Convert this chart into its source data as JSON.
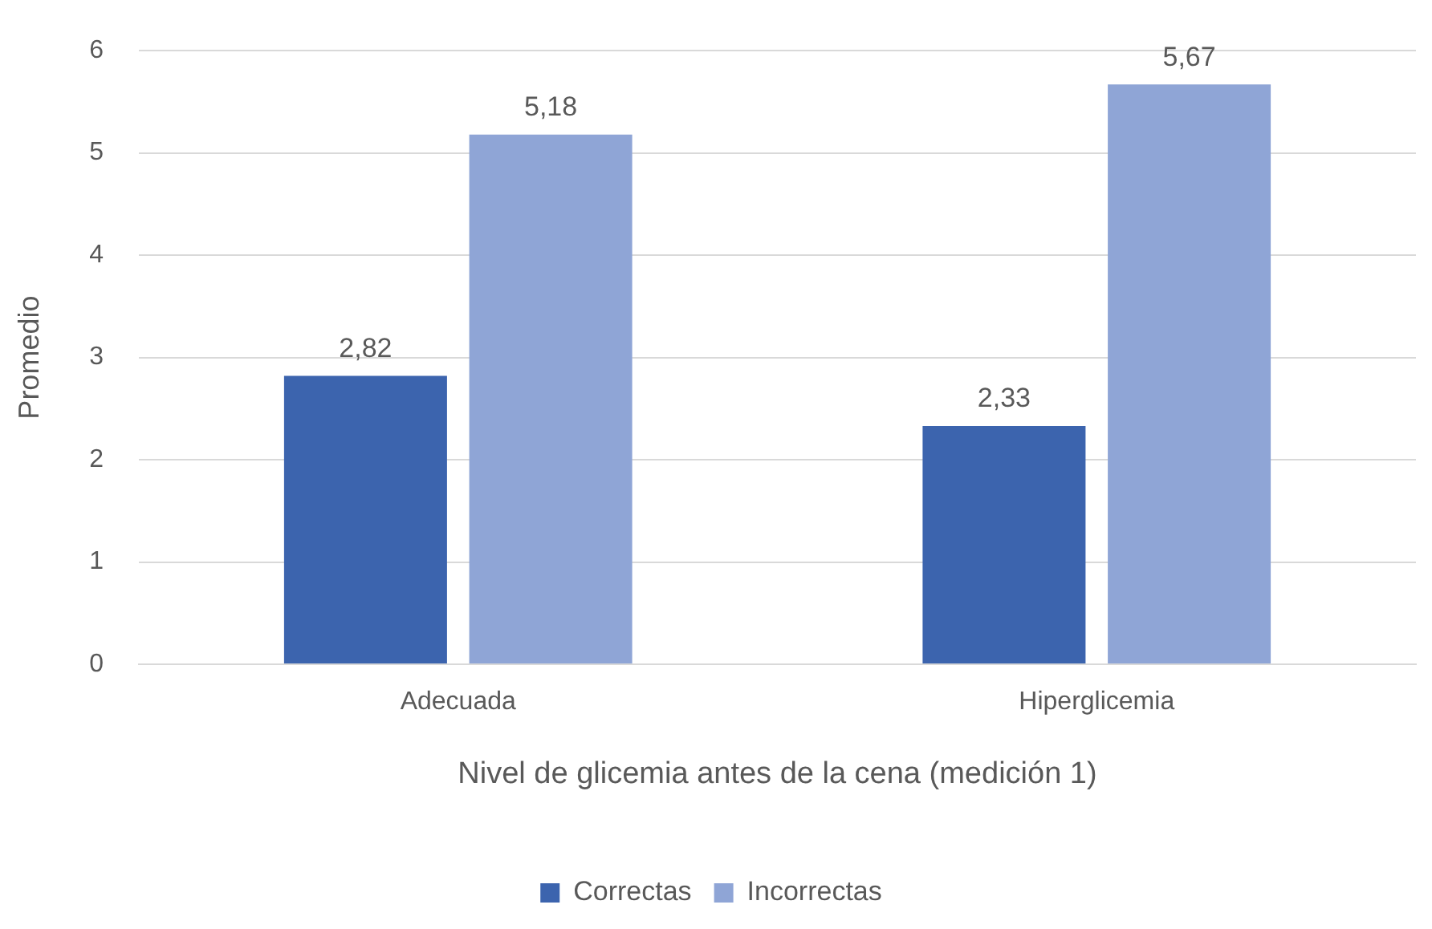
{
  "chart_data": {
    "type": "bar",
    "xlabel": "Nivel de glicemia antes de la cena (medición 1)",
    "ylabel": "Promedio",
    "categories": [
      "Adecuada",
      "Hiperglicemia"
    ],
    "series": [
      {
        "name": "Correctas",
        "color": "#3c64ae",
        "values": [
          2.82,
          2.33
        ],
        "value_labels": [
          "2,82",
          "2,33"
        ]
      },
      {
        "name": "Incorrectas",
        "color": "#8fa5d6",
        "values": [
          5.18,
          5.67
        ],
        "value_labels": [
          "5,18",
          "5,67"
        ]
      }
    ],
    "ylim": [
      0,
      6
    ],
    "yticks": [
      0,
      1,
      2,
      3,
      4,
      5,
      6
    ],
    "grid": "y",
    "legend": "bottom"
  }
}
